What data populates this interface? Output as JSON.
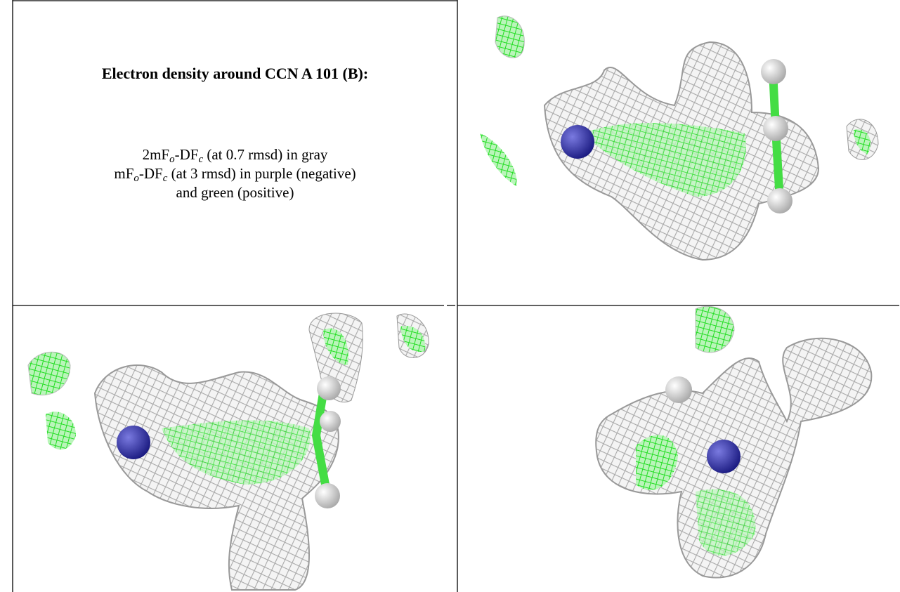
{
  "legend": {
    "title": "Electron density around CCN A 101 (B):",
    "lines": [
      [
        {
          "text": "2mF"
        },
        {
          "sub": "o"
        },
        {
          "text": "-DF"
        },
        {
          "sub": "c"
        },
        {
          "text": " (at 0.7 rmsd) in gray"
        }
      ],
      [
        {
          "text": "mF"
        },
        {
          "sub": "o"
        },
        {
          "text": "-DF"
        },
        {
          "sub": "c"
        },
        {
          "text": " (at 3 rmsd) in purple (negative)"
        }
      ],
      [
        {
          "text": "and green (positive)"
        }
      ]
    ]
  }
}
